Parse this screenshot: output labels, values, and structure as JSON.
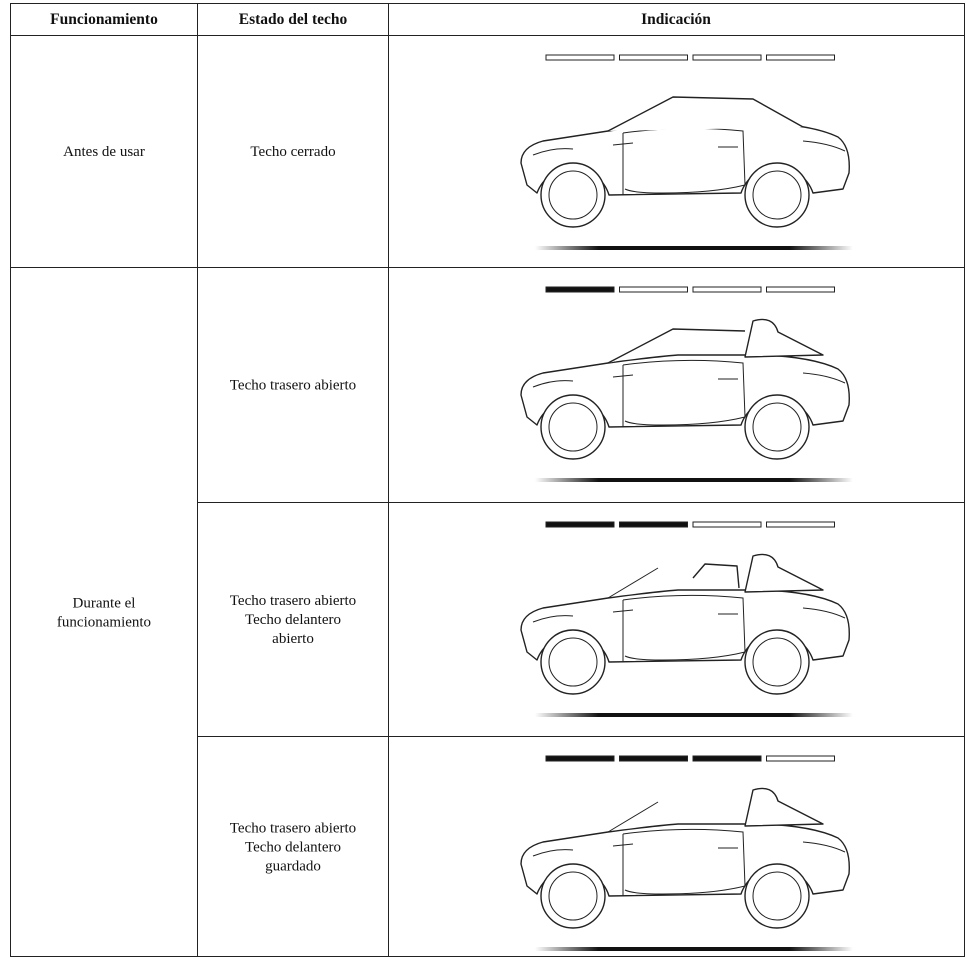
{
  "table": {
    "header": [
      "Funcionamiento",
      "Estado del techo",
      "Indicación"
    ],
    "operations": [
      [
        "Antes de usar"
      ],
      [
        "Durante el",
        "funcionamiento"
      ]
    ],
    "states": [
      [
        "Techo cerrado"
      ],
      [
        "Techo trasero abierto"
      ],
      [
        "Techo trasero abierto",
        "Techo delantero",
        "abierto"
      ],
      [
        "Techo trasero abierto",
        "Techo delantero",
        "guardado"
      ]
    ]
  }
}
